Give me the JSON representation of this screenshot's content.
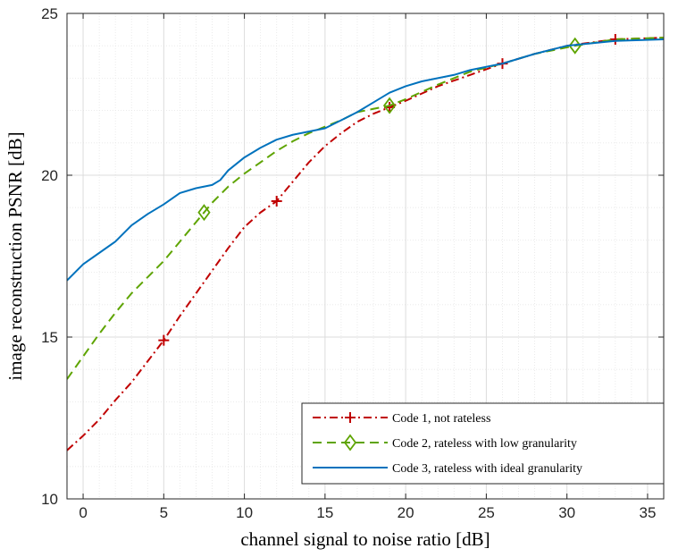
{
  "chart_data": {
    "type": "line",
    "xlabel": "channel signal to noise ratio [dB]",
    "ylabel": "image reconstruction PSNR [dB]",
    "xlim": [
      -1,
      36
    ],
    "ylim": [
      10,
      25
    ],
    "xticks": [
      0,
      5,
      10,
      15,
      20,
      25,
      30,
      35
    ],
    "yticks": [
      10,
      15,
      20,
      25
    ],
    "grid": true,
    "minor_grid": true,
    "legend_position": "bottom-right",
    "series": [
      {
        "name": "Code 1, not rateless",
        "color": "#c00000",
        "line_style": "dash-dot",
        "marker": "plus",
        "x": [
          -1,
          0,
          1,
          2,
          3,
          4,
          5,
          6,
          7,
          8,
          9,
          10,
          11,
          12,
          13,
          14,
          15,
          16,
          17,
          18,
          19,
          20,
          22,
          24,
          26,
          28,
          30,
          33,
          36
        ],
        "y": [
          11.5,
          11.95,
          12.45,
          13.05,
          13.6,
          14.25,
          14.9,
          15.65,
          16.35,
          17.05,
          17.75,
          18.4,
          18.85,
          19.2,
          19.8,
          20.4,
          20.9,
          21.3,
          21.65,
          21.9,
          22.1,
          22.3,
          22.75,
          23.1,
          23.45,
          23.75,
          24.0,
          24.2,
          24.25
        ],
        "marker_x": [
          5,
          12,
          19,
          26,
          33
        ],
        "marker_y": [
          14.9,
          19.2,
          22.1,
          23.45,
          24.2
        ]
      },
      {
        "name": "Code 2, rateless with low granularity",
        "color": "#5ea400",
        "line_style": "dashed",
        "marker": "diamond",
        "x": [
          -1,
          0,
          1,
          2,
          3,
          4,
          5,
          6,
          7,
          7.5,
          8,
          9,
          10,
          11,
          12,
          13,
          14,
          15,
          16,
          17,
          18,
          19,
          20,
          22,
          24,
          26,
          28,
          30.5,
          33,
          36
        ],
        "y": [
          13.7,
          14.4,
          15.1,
          15.75,
          16.35,
          16.85,
          17.35,
          17.95,
          18.55,
          18.85,
          19.15,
          19.65,
          20.05,
          20.4,
          20.75,
          21.05,
          21.3,
          21.5,
          21.7,
          21.95,
          22.05,
          22.15,
          22.35,
          22.8,
          23.2,
          23.45,
          23.75,
          24.0,
          24.2,
          24.25
        ],
        "marker_x": [
          7.5,
          19,
          30.5
        ],
        "marker_y": [
          18.85,
          22.15,
          24.0
        ]
      },
      {
        "name": "Code 3, rateless with ideal granularity",
        "color": "#0072bd",
        "line_style": "solid",
        "marker": "none",
        "x": [
          -1,
          0,
          1,
          2,
          3,
          4,
          5,
          6,
          7,
          8,
          8.5,
          9,
          10,
          11,
          12,
          13,
          14,
          15,
          16,
          17,
          18,
          19,
          20,
          21,
          22,
          23,
          24,
          26,
          28,
          30,
          33,
          36
        ],
        "y": [
          16.75,
          17.25,
          17.6,
          17.95,
          18.45,
          18.8,
          19.1,
          19.45,
          19.6,
          19.7,
          19.85,
          20.15,
          20.55,
          20.85,
          21.1,
          21.25,
          21.35,
          21.45,
          21.7,
          21.95,
          22.25,
          22.55,
          22.75,
          22.9,
          23.0,
          23.1,
          23.25,
          23.45,
          23.75,
          24.0,
          24.15,
          24.2
        ]
      }
    ]
  }
}
